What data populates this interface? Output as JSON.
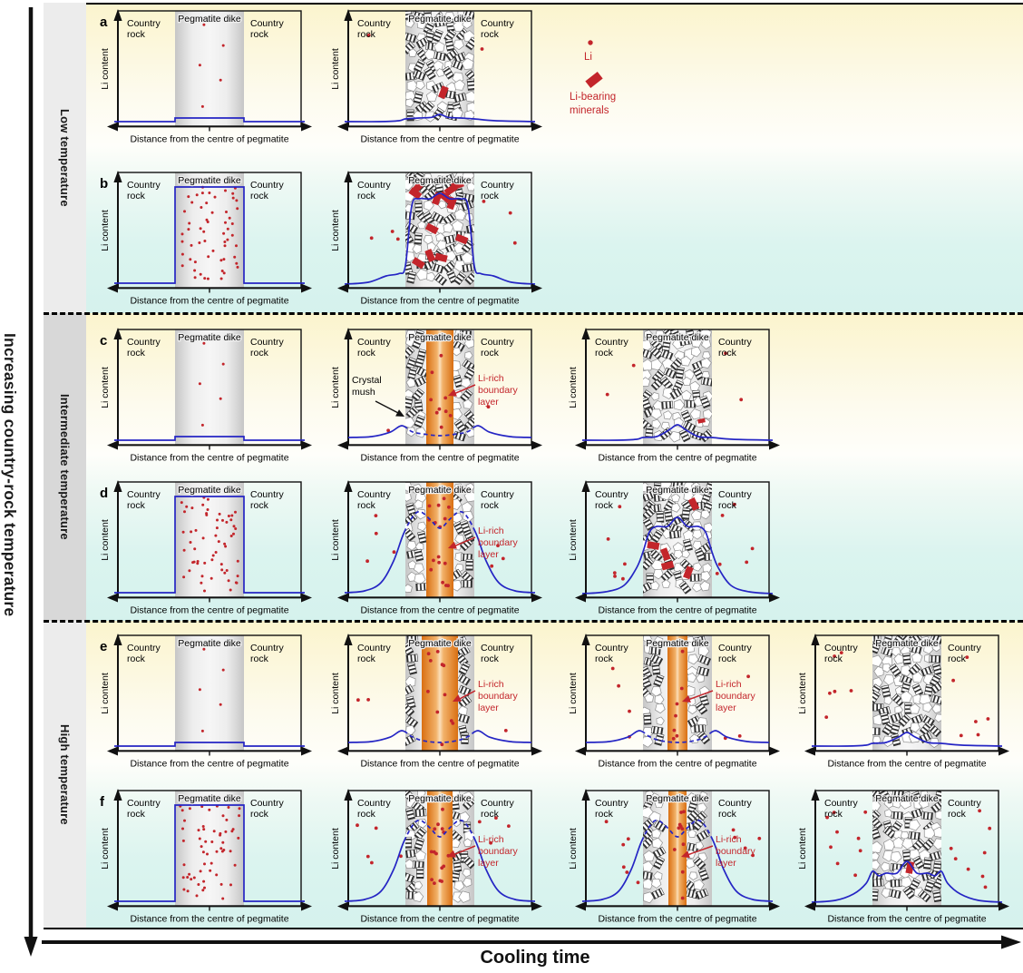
{
  "axes": {
    "vertical": "Increasing country-rock temperature",
    "horizontal": "Cooling time"
  },
  "temperature_bands": [
    {
      "label": "Low temperature"
    },
    {
      "label": "Intermediate temperature"
    },
    {
      "label": "High temperature"
    }
  ],
  "panel_text": {
    "country_rock": "Country rock",
    "pegmatite_dike": "Pegmatite dike",
    "y_axis": "Li content",
    "x_axis": "Distance from the centre of pegmatite"
  },
  "legend": {
    "li": "Li",
    "minerals": "Li-bearing minerals"
  },
  "labels": {
    "crystal_mush": "Crystal mush",
    "li_rich": "Li-rich boundary layer"
  },
  "colors": {
    "curve": "#2525c4",
    "li_red": "#c3252b",
    "axis": "#111111",
    "dike_edge": "#c6c6c6",
    "dike_mid": "#f6f6f6",
    "orange_edge": "#d96f12",
    "orange_mid": "#fbdfba"
  },
  "rows": [
    {
      "letter": "a",
      "has_legend": true,
      "panels": [
        {
          "dike": "melt",
          "melt_dots": 5,
          "curve": {
            "type": "flat-step"
          },
          "country_dots": [
            0,
            0
          ]
        },
        {
          "dike": "crystals",
          "minerals": 1,
          "curve": {
            "type": "small-bump",
            "apex": 13
          },
          "country_dots": [
            1,
            1
          ]
        }
      ]
    },
    {
      "letter": "b",
      "panels": [
        {
          "dike": "melt",
          "melt_dots": 58,
          "curve": {
            "type": "flat-square"
          },
          "country_dots": [
            0,
            0
          ]
        },
        {
          "dike": "crystals",
          "minerals": 12,
          "curve": {
            "type": "edge-top",
            "edge": 24,
            "inner": 98,
            "bump": 6
          },
          "country_dots": [
            3,
            3
          ]
        }
      ]
    },
    {
      "letter": "c",
      "panels": [
        {
          "dike": "melt",
          "melt_dots": 5,
          "curve": {
            "type": "flat-step"
          },
          "country_dots": [
            0,
            0
          ]
        },
        {
          "dike": "mush",
          "orange_w": 30,
          "orange_dots": 9,
          "curve": {
            "type": "double-bump",
            "base": 8,
            "amp": 13,
            "dip": 12
          },
          "ann": [
            "crystal_mush",
            "li_rich"
          ],
          "country_dots": [
            1,
            1
          ]
        },
        {
          "dike": "crystals",
          "minerals": 1,
          "small_mineral": true,
          "curve": {
            "type": "small-bump",
            "apex": 22
          },
          "country_dots": [
            2,
            2
          ]
        }
      ]
    },
    {
      "letter": "d",
      "panels": [
        {
          "dike": "melt",
          "melt_dots": 58,
          "curve": {
            "type": "flat-square"
          },
          "country_dots": [
            0,
            0
          ]
        },
        {
          "dike": "mush",
          "orange_w": 30,
          "orange_dots": 16,
          "curve": {
            "type": "bell-dip",
            "peak": 94,
            "dip": 76
          },
          "ann": [
            "li_rich"
          ],
          "country_dots": [
            4,
            3
          ]
        },
        {
          "dike": "crystals",
          "minerals": 5,
          "curve": {
            "type": "edge-top",
            "edge": 50,
            "inner": 78,
            "bump": 10
          },
          "country_dots": [
            6,
            6
          ]
        }
      ]
    },
    {
      "letter": "e",
      "panels": [
        {
          "dike": "melt",
          "melt_dots": 5,
          "curve": {
            "type": "flat-step"
          },
          "country_dots": [
            0,
            0
          ]
        },
        {
          "dike": "mush",
          "orange_w": 40,
          "orange_dots": 12,
          "curve": {
            "type": "double-bump",
            "base": 9,
            "amp": 13,
            "dip": 11
          },
          "ann": [
            "li_rich"
          ],
          "country_dots": [
            2,
            1
          ]
        },
        {
          "dike": "mush",
          "orange_w": 22,
          "orange_dots": 8,
          "curve": {
            "type": "double-bump",
            "base": 9,
            "amp": 13,
            "dip": 11
          },
          "ann": [
            "li_rich"
          ],
          "country_dots": [
            4,
            3
          ]
        },
        {
          "dike": "crystals",
          "minerals": 0,
          "curve": {
            "type": "small-bump",
            "apex": 20
          },
          "country_dots": [
            6,
            6
          ]
        }
      ]
    },
    {
      "letter": "f",
      "panels": [
        {
          "dike": "melt",
          "melt_dots": 58,
          "curve": {
            "type": "flat-square"
          },
          "country_dots": [
            0,
            0
          ]
        },
        {
          "dike": "mush",
          "orange_w": 28,
          "orange_dots": 15,
          "curve": {
            "type": "bell-dip",
            "peak": 94,
            "dip": 76
          },
          "ann": [
            "li_rich"
          ],
          "country_dots": [
            5,
            4
          ]
        },
        {
          "dike": "mush",
          "orange_w": 20,
          "orange_dots": 10,
          "curve": {
            "type": "bell-dip",
            "peak": 94,
            "dip": 76
          },
          "ann": [
            "li_rich"
          ],
          "country_dots": [
            6,
            5
          ]
        },
        {
          "dike": "crystals",
          "minerals": 1,
          "curve": {
            "type": "edge-top",
            "edge": 38,
            "inner": 36,
            "bump": 13
          },
          "country_dots": [
            9,
            8
          ]
        }
      ]
    }
  ]
}
